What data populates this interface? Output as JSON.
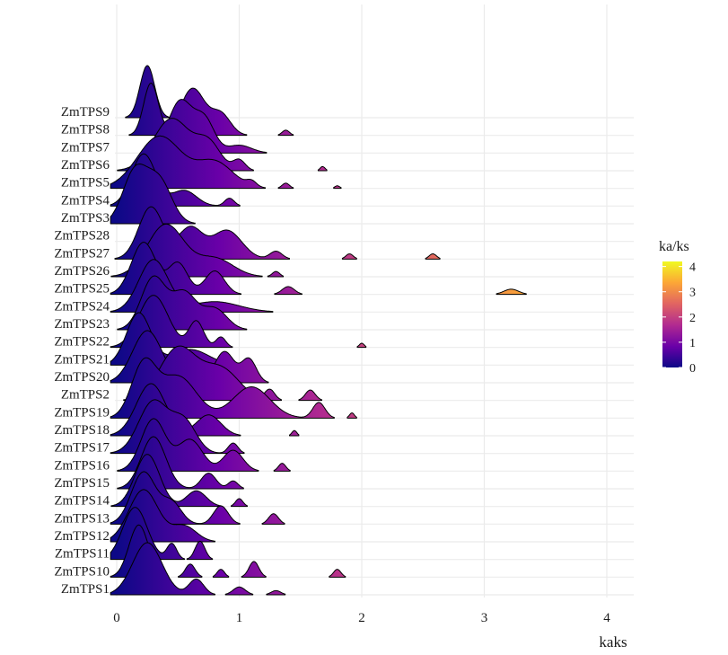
{
  "chart_data": {
    "type": "ridgeline",
    "xlabel": "kaks",
    "ylabel": "",
    "xlim": [
      -0.05,
      4.2
    ],
    "xticks": [
      0,
      1,
      2,
      3,
      4
    ],
    "grid": true,
    "legend": {
      "title": "ka/ks",
      "placement": "right",
      "range": [
        0,
        4.2
      ],
      "ticks": [
        0,
        1,
        2,
        3,
        4
      ],
      "colors": [
        "#0d0887",
        "#6a00a8",
        "#b12a90",
        "#e16462",
        "#fca636",
        "#f0f921"
      ]
    },
    "series": [
      {
        "name": "ZmTPS1",
        "peaks": [
          [
            0.25,
            0.12,
            1.0
          ],
          [
            0.65,
            0.06,
            0.3
          ],
          [
            1.0,
            0.05,
            0.15
          ],
          [
            1.3,
            0.04,
            0.08
          ]
        ]
      },
      {
        "name": "ZmTPS10",
        "peaks": [
          [
            0.18,
            0.08,
            1.0
          ],
          [
            0.6,
            0.04,
            0.25
          ],
          [
            0.85,
            0.03,
            0.15
          ],
          [
            1.12,
            0.04,
            0.3
          ],
          [
            1.8,
            0.03,
            0.15
          ]
        ]
      },
      {
        "name": "ZmTPS11",
        "peaks": [
          [
            0.15,
            0.1,
            1.0
          ],
          [
            0.45,
            0.04,
            0.3
          ],
          [
            0.68,
            0.04,
            0.35
          ]
        ]
      },
      {
        "name": "ZmTPS12",
        "peaks": [
          [
            0.22,
            0.12,
            1.0
          ],
          [
            0.55,
            0.1,
            0.3
          ]
        ]
      },
      {
        "name": "ZmTPS13",
        "peaks": [
          [
            0.22,
            0.1,
            1.0
          ],
          [
            0.45,
            0.08,
            0.4
          ],
          [
            0.85,
            0.06,
            0.35
          ],
          [
            1.28,
            0.04,
            0.2
          ]
        ]
      },
      {
        "name": "ZmTPS14",
        "peaks": [
          [
            0.25,
            0.1,
            1.0
          ],
          [
            0.65,
            0.08,
            0.3
          ],
          [
            1.0,
            0.03,
            0.15
          ]
        ]
      },
      {
        "name": "ZmTPS15",
        "peaks": [
          [
            0.3,
            0.1,
            1.0
          ],
          [
            0.75,
            0.06,
            0.3
          ],
          [
            0.95,
            0.04,
            0.15
          ]
        ]
      },
      {
        "name": "ZmTPS16",
        "peaks": [
          [
            0.3,
            0.1,
            1.0
          ],
          [
            0.6,
            0.1,
            0.6
          ],
          [
            0.95,
            0.08,
            0.4
          ],
          [
            1.35,
            0.03,
            0.15
          ]
        ]
      },
      {
        "name": "ZmTPS17",
        "peaks": [
          [
            0.3,
            0.12,
            1.0
          ],
          [
            0.55,
            0.1,
            0.6
          ],
          [
            0.95,
            0.04,
            0.2
          ]
        ]
      },
      {
        "name": "ZmTPS18",
        "peaks": [
          [
            0.28,
            0.12,
            1.0
          ],
          [
            0.75,
            0.1,
            0.4
          ],
          [
            1.45,
            0.02,
            0.1
          ]
        ]
      },
      {
        "name": "ZmTPS19",
        "peaks": [
          [
            0.22,
            0.1,
            1.0
          ],
          [
            0.5,
            0.15,
            0.8
          ],
          [
            1.1,
            0.15,
            0.6
          ],
          [
            1.65,
            0.05,
            0.3
          ],
          [
            1.92,
            0.02,
            0.1
          ]
        ]
      },
      {
        "name": "ZmTPS2",
        "peaks": [
          [
            0.5,
            0.15,
            1.0
          ],
          [
            0.85,
            0.15,
            0.6
          ],
          [
            1.25,
            0.04,
            0.2
          ],
          [
            1.58,
            0.04,
            0.2
          ]
        ]
      },
      {
        "name": "ZmTPS20",
        "peaks": [
          [
            0.25,
            0.12,
            1.0
          ],
          [
            0.88,
            0.08,
            0.6
          ],
          [
            1.08,
            0.06,
            0.45
          ]
        ]
      },
      {
        "name": "ZmTPS21",
        "peaks": [
          [
            0.18,
            0.1,
            1.0
          ],
          [
            0.6,
            0.15,
            0.3
          ]
        ]
      },
      {
        "name": "ZmTPS22",
        "peaks": [
          [
            0.3,
            0.12,
            1.0
          ],
          [
            0.65,
            0.06,
            0.5
          ],
          [
            0.85,
            0.04,
            0.2
          ],
          [
            2.0,
            0.02,
            0.08
          ]
        ]
      },
      {
        "name": "ZmTPS23",
        "peaks": [
          [
            0.3,
            0.1,
            1.0
          ],
          [
            0.55,
            0.1,
            0.7
          ],
          [
            0.8,
            0.1,
            0.4
          ]
        ]
      },
      {
        "name": "ZmTPS24",
        "peaks": [
          [
            0.3,
            0.12,
            1.0
          ],
          [
            0.8,
            0.2,
            0.2
          ]
        ]
      },
      {
        "name": "ZmTPS25",
        "peaks": [
          [
            0.22,
            0.1,
            1.0
          ],
          [
            0.5,
            0.08,
            0.6
          ],
          [
            0.8,
            0.08,
            0.45
          ],
          [
            1.4,
            0.05,
            0.15
          ],
          [
            3.22,
            0.06,
            0.1
          ]
        ]
      },
      {
        "name": "ZmTPS26",
        "peaks": [
          [
            0.4,
            0.15,
            1.0
          ],
          [
            0.8,
            0.15,
            0.35
          ],
          [
            1.3,
            0.03,
            0.1
          ]
        ]
      },
      {
        "name": "ZmTPS27",
        "peaks": [
          [
            0.28,
            0.1,
            1.0
          ],
          [
            0.6,
            0.1,
            0.6
          ],
          [
            0.9,
            0.12,
            0.55
          ],
          [
            1.3,
            0.05,
            0.15
          ],
          [
            1.9,
            0.03,
            0.1
          ],
          [
            2.58,
            0.03,
            0.1
          ]
        ]
      },
      {
        "name": "ZmTPS28",
        "peaks": []
      },
      {
        "name": "ZmTPS3",
        "peaks": [
          [
            0.15,
            0.1,
            1.0
          ],
          [
            0.35,
            0.1,
            0.8
          ]
        ]
      },
      {
        "name": "ZmTPS4",
        "peaks": [
          [
            0.22,
            0.1,
            1.0
          ],
          [
            0.55,
            0.1,
            0.3
          ],
          [
            0.92,
            0.04,
            0.15
          ]
        ]
      },
      {
        "name": "ZmTPS5",
        "peaks": [
          [
            0.35,
            0.18,
            1.0
          ],
          [
            0.8,
            0.15,
            0.5
          ],
          [
            1.1,
            0.04,
            0.1
          ],
          [
            1.38,
            0.03,
            0.1
          ],
          [
            1.8,
            0.02,
            0.05
          ]
        ]
      },
      {
        "name": "ZmTPS6",
        "peaks": [
          [
            0.45,
            0.15,
            1.0
          ],
          [
            0.75,
            0.1,
            0.5
          ],
          [
            1.0,
            0.05,
            0.2
          ],
          [
            1.68,
            0.02,
            0.08
          ]
        ]
      },
      {
        "name": "ZmTPS7",
        "peaks": [
          [
            0.52,
            0.1,
            1.0
          ],
          [
            0.72,
            0.08,
            0.6
          ],
          [
            1.0,
            0.1,
            0.15
          ]
        ]
      },
      {
        "name": "ZmTPS8",
        "peaks": [
          [
            0.28,
            0.06,
            1.0
          ],
          [
            0.62,
            0.1,
            0.9
          ],
          [
            0.85,
            0.08,
            0.4
          ],
          [
            1.38,
            0.03,
            0.1
          ]
        ]
      },
      {
        "name": "ZmTPS9",
        "peaks": [
          [
            0.25,
            0.06,
            1.0
          ],
          [
            0.75,
            0.05,
            0.12
          ]
        ]
      }
    ]
  }
}
